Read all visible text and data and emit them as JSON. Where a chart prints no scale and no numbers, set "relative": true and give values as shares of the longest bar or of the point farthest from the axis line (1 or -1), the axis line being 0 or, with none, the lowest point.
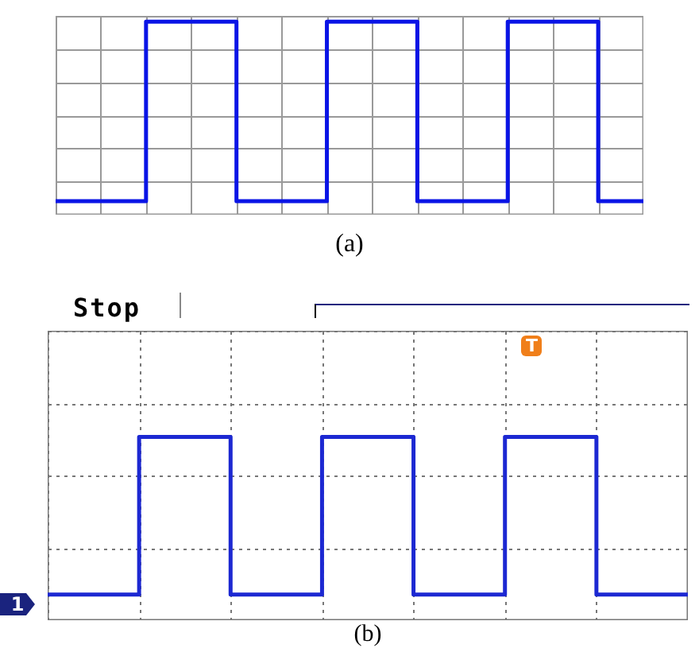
{
  "chart_data": [
    {
      "type": "step",
      "relative": true,
      "grid": true,
      "annotations": [
        "(a)"
      ],
      "categories": [
        null,
        null,
        null,
        null,
        null,
        null,
        null,
        null,
        null,
        null,
        null,
        null,
        null,
        null
      ],
      "series": [
        {
          "color": "#0a14e6",
          "values": [
            0.07,
            0.07,
            1,
            1,
            0.07,
            0.07,
            1,
            1,
            0.07,
            0.07,
            1,
            1,
            0.07,
            0.07
          ]
        }
      ]
    },
    {
      "type": "step",
      "relative": true,
      "grid": true,
      "annotations": [
        "Stop",
        "1",
        "T",
        "(b)"
      ],
      "categories": [
        null,
        null,
        null,
        null,
        null,
        null,
        null,
        null
      ],
      "series": [
        {
          "color": "#1c28d2",
          "values": [
            0.14,
            1,
            0.14,
            1,
            0.14,
            1,
            0.14,
            0.14
          ]
        }
      ]
    }
  ]
}
